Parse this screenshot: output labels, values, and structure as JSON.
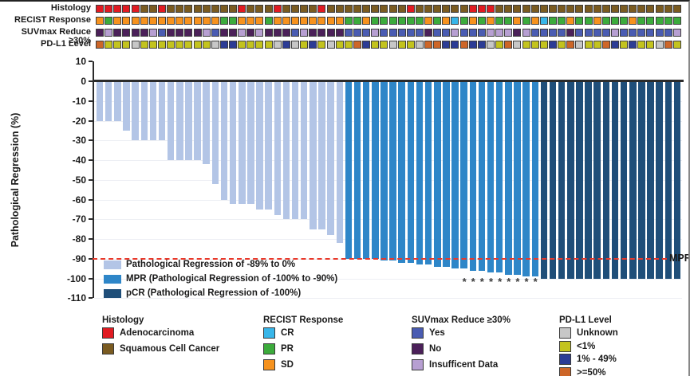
{
  "palettes": {
    "histology": {
      "ADC": "#e11b22",
      "SCC": "#7a5b21"
    },
    "recist": {
      "CR": "#38b6e9",
      "PR": "#3cab3c",
      "SD": "#f6921e"
    },
    "suvmax": {
      "Yes": "#4a5cb2",
      "No": "#4b2059",
      "ID": "#b79fd2"
    },
    "pdl1": {
      "UNK": "#c7c7c7",
      "LT1": "#c3c31e",
      "P1_49": "#2c3c95",
      "GE50": "#cd6628"
    },
    "bars": {
      "light": "#b3c5e6",
      "mpr": "#2e86c8",
      "pcr": "#1f4e79"
    }
  },
  "tracks": {
    "rows": [
      {
        "name": "Histology",
        "palette": "histology",
        "values": [
          "ADC",
          "ADC",
          "ADC",
          "ADC",
          "ADC",
          "SCC",
          "SCC",
          "ADC",
          "SCC",
          "SCC",
          "SCC",
          "SCC",
          "SCC",
          "SCC",
          "SCC",
          "SCC",
          "ADC",
          "SCC",
          "SCC",
          "SCC",
          "ADC",
          "SCC",
          "SCC",
          "SCC",
          "SCC",
          "ADC",
          "SCC",
          "SCC",
          "SCC",
          "SCC",
          "SCC",
          "SCC",
          "SCC",
          "SCC",
          "SCC",
          "ADC",
          "SCC",
          "SCC",
          "SCC",
          "SCC",
          "SCC",
          "SCC",
          "ADC",
          "ADC",
          "ADC",
          "SCC",
          "SCC",
          "SCC",
          "SCC",
          "SCC",
          "SCC",
          "SCC",
          "SCC",
          "SCC",
          "SCC",
          "SCC",
          "SCC",
          "SCC",
          "SCC",
          "SCC",
          "SCC",
          "SCC",
          "SCC",
          "SCC",
          "SCC",
          "SCC"
        ]
      },
      {
        "name": "RECIST Response",
        "palette": "recist",
        "values": [
          "SD",
          "PR",
          "SD",
          "SD",
          "SD",
          "SD",
          "SD",
          "SD",
          "SD",
          "SD",
          "SD",
          "SD",
          "SD",
          "SD",
          "PR",
          "PR",
          "SD",
          "SD",
          "SD",
          "PR",
          "SD",
          "SD",
          "SD",
          "SD",
          "SD",
          "SD",
          "SD",
          "SD",
          "PR",
          "PR",
          "SD",
          "PR",
          "PR",
          "PR",
          "PR",
          "PR",
          "PR",
          "SD",
          "PR",
          "SD",
          "CR",
          "PR",
          "SD",
          "PR",
          "SD",
          "PR",
          "PR",
          "SD",
          "PR",
          "SD",
          "CR",
          "PR",
          "PR",
          "SD",
          "PR",
          "PR",
          "SD",
          "PR",
          "PR",
          "PR",
          "SD",
          "PR",
          "PR",
          "PR",
          "PR",
          "PR"
        ]
      },
      {
        "name": "SUVmax Reduce ≥30%",
        "palette": "suvmax",
        "values": [
          "No",
          "ID",
          "No",
          "No",
          "No",
          "No",
          "ID",
          "Yes",
          "No",
          "No",
          "No",
          "No",
          "ID",
          "Yes",
          "No",
          "No",
          "ID",
          "No",
          "ID",
          "No",
          "No",
          "No",
          "Yes",
          "ID",
          "No",
          "No",
          "No",
          "No",
          "Yes",
          "Yes",
          "Yes",
          "ID",
          "Yes",
          "Yes",
          "Yes",
          "Yes",
          "Yes",
          "No",
          "Yes",
          "Yes",
          "ID",
          "Yes",
          "Yes",
          "Yes",
          "ID",
          "ID",
          "ID",
          "No",
          "ID",
          "Yes",
          "Yes",
          "Yes",
          "Yes",
          "No",
          "Yes",
          "Yes",
          "Yes",
          "Yes",
          "ID",
          "Yes",
          "Yes",
          "Yes",
          "Yes",
          "Yes",
          "Yes",
          "ID"
        ]
      },
      {
        "name": "PD-L1 Level",
        "palette": "pdl1",
        "values": [
          "GE50",
          "LT1",
          "LT1",
          "LT1",
          "UNK",
          "LT1",
          "LT1",
          "LT1",
          "LT1",
          "LT1",
          "LT1",
          "LT1",
          "LT1",
          "UNK",
          "P1_49",
          "P1_49",
          "LT1",
          "LT1",
          "LT1",
          "LT1",
          "UNK",
          "P1_49",
          "UNK",
          "LT1",
          "P1_49",
          "LT1",
          "UNK",
          "LT1",
          "LT1",
          "GE50",
          "P1_49",
          "LT1",
          "LT1",
          "UNK",
          "LT1",
          "LT1",
          "UNK",
          "GE50",
          "GE50",
          "P1_49",
          "P1_49",
          "GE50",
          "P1_49",
          "P1_49",
          "UNK",
          "LT1",
          "GE50",
          "UNK",
          "LT1",
          "LT1",
          "LT1",
          "P1_49",
          "LT1",
          "GE50",
          "UNK",
          "LT1",
          "LT1",
          "GE50",
          "P1_49",
          "LT1",
          "P1_49",
          "LT1",
          "LT1",
          "UNK",
          "GE50",
          "LT1"
        ]
      }
    ]
  },
  "chart_data": {
    "type": "bar",
    "subtype": "waterfall",
    "title": "",
    "ylabel": "Pathological Regression (%)",
    "ylim": [
      -110,
      10
    ],
    "yticks": [
      10,
      0,
      -10,
      -20,
      -30,
      -40,
      -50,
      -60,
      -70,
      -80,
      -90,
      -100,
      -110
    ],
    "grid": true,
    "values": [
      -20,
      -20,
      -20,
      -25,
      -30,
      -30,
      -30,
      -30,
      -40,
      -40,
      -40,
      -40,
      -42,
      -52,
      -60,
      -62,
      -62,
      -62,
      -65,
      -65,
      -68,
      -70,
      -70,
      -70,
      -75,
      -75,
      -78,
      -82,
      -90,
      -90,
      -90,
      -90,
      -91,
      -91,
      -92,
      -92,
      -93,
      -93,
      -94,
      -94,
      -95,
      -95,
      -96,
      -96,
      -97,
      -97,
      -98,
      -98,
      -99,
      -99,
      -100,
      -100,
      -100,
      -100,
      -100,
      -100,
      -100,
      -100,
      -100,
      -100,
      -100,
      -100,
      -100,
      -100,
      -100,
      -100
    ],
    "classes": [
      "light",
      "light",
      "light",
      "light",
      "light",
      "light",
      "light",
      "light",
      "light",
      "light",
      "light",
      "light",
      "light",
      "light",
      "light",
      "light",
      "light",
      "light",
      "light",
      "light",
      "light",
      "light",
      "light",
      "light",
      "light",
      "light",
      "light",
      "light",
      "mpr",
      "mpr",
      "mpr",
      "mpr",
      "mpr",
      "mpr",
      "mpr",
      "mpr",
      "mpr",
      "mpr",
      "mpr",
      "mpr",
      "mpr",
      "mpr",
      "mpr",
      "mpr",
      "mpr",
      "mpr",
      "mpr",
      "mpr",
      "mpr",
      "mpr",
      "pcr",
      "pcr",
      "pcr",
      "pcr",
      "pcr",
      "pcr",
      "pcr",
      "pcr",
      "pcr",
      "pcr",
      "pcr",
      "pcr",
      "pcr",
      "pcr",
      "pcr",
      "pcr"
    ],
    "asterisk_columns": [
      42,
      43,
      44,
      45,
      46,
      47,
      48,
      49,
      50
    ],
    "asterisk_char": "*",
    "mpr_line": {
      "y": -90,
      "label": "MPR",
      "color": "#e8392b"
    },
    "bar_legend": [
      {
        "key": "light",
        "label": "Pathological Regression of -89% to 0%"
      },
      {
        "key": "mpr",
        "label": "MPR (Pathological Regression of -100% to -90%)"
      },
      {
        "key": "pcr",
        "label": "pCR (Pathological Regression of -100%)"
      }
    ]
  },
  "legends": [
    {
      "title": "Histology",
      "palette": "histology",
      "items": [
        {
          "label": "Adenocarcinoma",
          "key": "ADC"
        },
        {
          "label": "Squamous Cell Cancer",
          "key": "SCC"
        }
      ]
    },
    {
      "title": "RECIST Response",
      "palette": "recist",
      "items": [
        {
          "label": "CR",
          "key": "CR"
        },
        {
          "label": "PR",
          "key": "PR"
        },
        {
          "label": "SD",
          "key": "SD"
        }
      ]
    },
    {
      "title": "SUVmax Reduce ≥30%",
      "palette": "suvmax",
      "items": [
        {
          "label": "Yes",
          "key": "Yes"
        },
        {
          "label": "No",
          "key": "No"
        },
        {
          "label": "Insufficent Data",
          "key": "ID"
        }
      ]
    },
    {
      "title": "PD-L1 Level",
      "palette": "pdl1",
      "items": [
        {
          "label": "Unknown",
          "key": "UNK"
        },
        {
          "label": "<1%",
          "key": "LT1"
        },
        {
          "label": "1% - 49%",
          "key": "P1_49"
        },
        {
          "label": ">=50%",
          "key": "GE50"
        }
      ]
    }
  ]
}
